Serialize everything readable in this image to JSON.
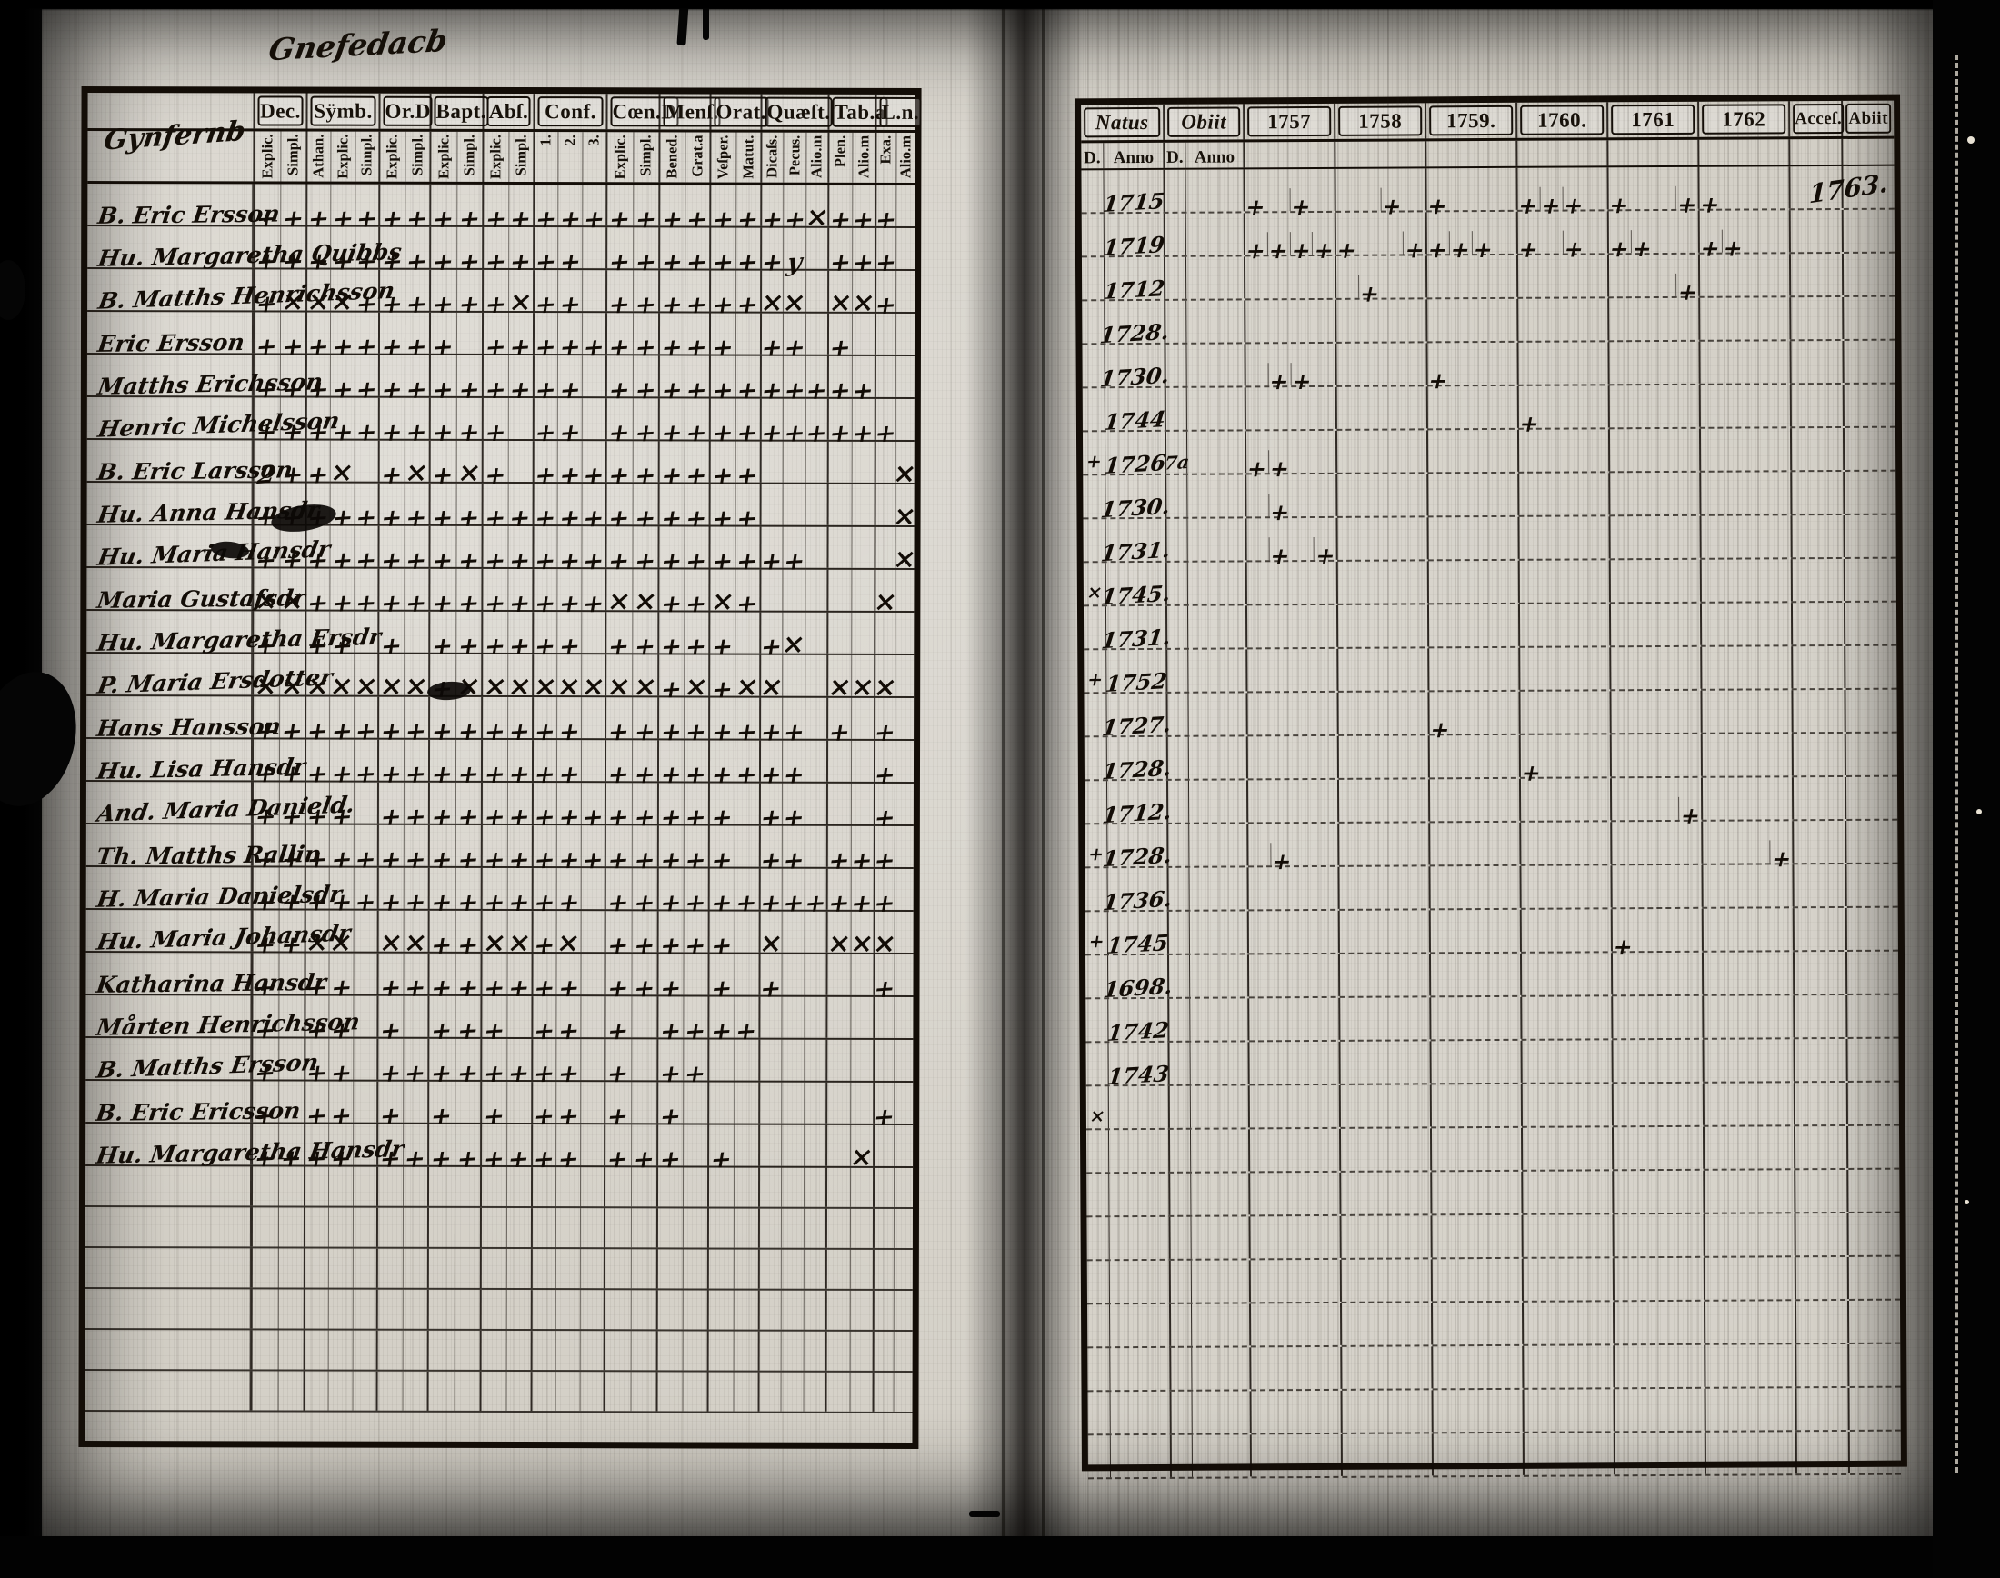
{
  "spread": {
    "handwritten_page_title": "Gnefedacb",
    "left_page": {
      "handwritten_name_header": "Gynfernb",
      "columns": [
        {
          "label": "Dec.",
          "subs": [
            "Explic.",
            "Simpl."
          ]
        },
        {
          "label": "Sÿmb.",
          "subs": [
            "Athan.",
            "Explic.",
            "Simpl."
          ]
        },
        {
          "label": "Or.D",
          "subs": [
            "Explic.",
            "Simpl."
          ]
        },
        {
          "label": "Bapt.",
          "subs": [
            "Explic.",
            "Simpl."
          ]
        },
        {
          "label": "Abſ.",
          "subs": [
            "Explic.",
            "Simpl."
          ]
        },
        {
          "label": "Conf.",
          "subs": [
            "1.",
            "2.",
            "3."
          ]
        },
        {
          "label": "Cœn.D",
          "subs": [
            "Explic.",
            "Simpl."
          ]
        },
        {
          "label": "Menſ.",
          "subs": [
            "Bened.",
            "Grat.a"
          ]
        },
        {
          "label": "Orat.",
          "subs": [
            "Veſper.",
            "Matut."
          ]
        },
        {
          "label": "Quæſt.",
          "subs": [
            "Dicaſs.",
            "Pecus.",
            "Alio.m"
          ]
        },
        {
          "label": "Tab.a",
          "subs": [
            "Plen.",
            "Alio.m"
          ]
        },
        {
          "label": "L.n.",
          "subs": [
            "Exa.",
            "Alio.m"
          ]
        }
      ],
      "rows": [
        {
          "name": "B. Eric Ersson",
          "marks": [
            "++",
            "+++",
            "++",
            "++",
            "++",
            "+++",
            "++",
            "++",
            "++",
            "++x",
            "++",
            "+ "
          ]
        },
        {
          "name": "Hu. Margaretha Quibbs",
          "marks": [
            "++",
            "+++",
            "++",
            "++",
            "++",
            "++ ",
            "++",
            "++",
            "++",
            "+y ",
            "++",
            "+ "
          ]
        },
        {
          "name": "B. Matths Henrichsson",
          "marks": [
            "+x",
            "xx+",
            "++",
            "++",
            "+x",
            "++ ",
            "++",
            "++",
            "++",
            "xx ",
            "xx",
            "+ "
          ]
        },
        {
          "name": "Eric Ersson",
          "marks": [
            "++",
            "+++",
            "++",
            "+ ",
            "++",
            "+++",
            "++",
            "++",
            "+ ",
            "++ ",
            "+ ",
            "  "
          ]
        },
        {
          "name": "Matths Erichsson",
          "marks": [
            "++",
            "+++",
            "++",
            "++",
            "++",
            "++ ",
            "++",
            "++",
            "++",
            "+++",
            "++",
            "  "
          ]
        },
        {
          "name": "Henric Michelsson",
          "marks": [
            "++",
            "+++",
            "++",
            "++",
            "+ ",
            "++ ",
            "++",
            "++",
            "++",
            "+++",
            "++",
            "+ "
          ]
        },
        {
          "name": "B. Eric Larsson",
          "marks": [
            "2+",
            "+x ",
            "+x",
            "+x",
            "+ ",
            "+++",
            "++",
            "++",
            "++",
            "   ",
            "  ",
            " x"
          ]
        },
        {
          "name": "Hu. Anna Hansdr",
          "marks": [
            "++",
            "+++",
            "++",
            "++",
            "++",
            "+++",
            "++",
            "++",
            "++",
            "   ",
            "  ",
            " x"
          ]
        },
        {
          "name": "Hu. Maria Hansdr",
          "marks": [
            "++",
            "+++",
            "++",
            "++",
            "++",
            "+++",
            "++",
            "++",
            "++",
            "++ ",
            "  ",
            " x"
          ]
        },
        {
          "name": "Maria Gustafsdr",
          "marks": [
            "xx",
            "+++",
            "++",
            "++",
            "++",
            "+++",
            "xx",
            "++",
            "x+",
            "   ",
            "  ",
            "x "
          ]
        },
        {
          "name": "Hu. Margaretha Ersdr",
          "marks": [
            "+ ",
            "++ ",
            "+ ",
            "++",
            "++",
            "++ ",
            "++",
            "++",
            "+ ",
            "+x ",
            "  ",
            "  "
          ]
        },
        {
          "name": "P. Maria Ersdotter",
          "marks": [
            "xx",
            "xxx",
            "xx",
            "+x",
            "xx",
            "xxx",
            "xx",
            "+x",
            "+x",
            "x  ",
            "xx",
            "x "
          ]
        },
        {
          "name": "Hans Hansson",
          "marks": [
            "++",
            "+++",
            "++",
            "++",
            "++",
            "++ ",
            "++",
            "++",
            "++",
            "++ ",
            "+ ",
            "+ "
          ]
        },
        {
          "name": "Hu. Lisa Hansdr",
          "marks": [
            "++",
            "+++",
            "++",
            "++",
            "++",
            "++ ",
            "++",
            "++",
            "++",
            "++ ",
            "  ",
            "+ "
          ]
        },
        {
          "name": "And. Maria Danield.",
          "marks": [
            "++",
            "++ ",
            "++",
            "++",
            "++",
            "+++",
            "++",
            "++",
            "+ ",
            "++ ",
            "  ",
            "+ "
          ]
        },
        {
          "name": "Th. Matths Rallin",
          "marks": [
            "++",
            "+++",
            "++",
            "++",
            "++",
            "+++",
            "++",
            "++",
            "+ ",
            "++ ",
            "++",
            "+ "
          ]
        },
        {
          "name": "H. Maria Danielsdr",
          "marks": [
            "++",
            "+++",
            "++",
            "++",
            "++",
            "++ ",
            "++",
            "++",
            "++",
            "+++",
            "++",
            "+ "
          ]
        },
        {
          "name": "Hu. Maria Johansdr",
          "marks": [
            "++",
            "xx ",
            "xx",
            "++",
            "xx",
            "+x ",
            "++",
            "++",
            "+ ",
            "x  ",
            "xx",
            "x "
          ]
        },
        {
          "name": "Katharina Hansdr",
          "marks": [
            "+ ",
            "++ ",
            "++",
            "++",
            "++",
            "++ ",
            "++",
            "+ ",
            "+ ",
            "+  ",
            "  ",
            "+ "
          ]
        },
        {
          "name": "Mårten Henrichsson",
          "marks": [
            "+ ",
            "++ ",
            "+ ",
            "++",
            "+ ",
            "++ ",
            "+ ",
            "++",
            "++",
            "   ",
            "  ",
            "  "
          ]
        },
        {
          "name": "B. Matths Ersson",
          "marks": [
            "+ ",
            "++ ",
            "++",
            "++",
            "++",
            "++ ",
            "+ ",
            "++",
            "  ",
            "   ",
            "  ",
            "  "
          ]
        },
        {
          "name": "B. Eric Ericsson",
          "marks": [
            "+ ",
            "++ ",
            "+ ",
            "+ ",
            "+ ",
            "++ ",
            "+ ",
            "+ ",
            "  ",
            "   ",
            "  ",
            "+ "
          ]
        },
        {
          "name": "Hu. Margaretha Hansdr",
          "marks": [
            "++",
            "++ ",
            "++",
            "++",
            "++",
            "++ ",
            "++",
            "+ ",
            "+ ",
            "   ",
            " x",
            "  "
          ]
        }
      ],
      "empty_row_count": 6
    },
    "right_page": {
      "natus_label": "Natus",
      "obiit_label": "Obiit",
      "day_label": "D.",
      "anno_label": "Anno",
      "years": [
        "1757",
        "1758",
        "1759.",
        "1760.",
        "1761",
        "1762"
      ],
      "accessit_label": "Acceſ.",
      "abiit_label": "Abiit",
      "handwritten_year": "1763.",
      "rows": [
        {
          "pre": "",
          "natus": "1715",
          "obiit": "",
          "year_marks": [
            "+.+.",
            "..+.",
            "+...",
            "+++.",
            "+..+",
            "+..."
          ]
        },
        {
          "pre": "",
          "natus": "1719",
          "obiit": "",
          "year_marks": [
            "++++",
            "+..+",
            "+++.",
            "+.+.",
            "++..",
            "++.."
          ]
        },
        {
          "pre": "",
          "natus": "1712",
          "obiit": "",
          "year_marks": [
            "....",
            ".+..",
            "....",
            "....",
            "...+",
            "...."
          ]
        },
        {
          "pre": "",
          "natus": "1728.",
          "obiit": "",
          "year_marks": [
            "....",
            "....",
            "....",
            "....",
            "....",
            "...."
          ]
        },
        {
          "pre": "",
          "natus": "1730.",
          "obiit": "",
          "year_marks": [
            ".++.",
            "....",
            "+...",
            "....",
            "....",
            "...."
          ]
        },
        {
          "pre": "",
          "natus": "1744",
          "obiit": "",
          "year_marks": [
            "....",
            "....",
            "....",
            "+...",
            "....",
            "...."
          ]
        },
        {
          "pre": "+",
          "natus": "1726",
          "obiit": "7a",
          "year_marks": [
            "++..",
            "....",
            "....",
            "....",
            "....",
            "...."
          ]
        },
        {
          "pre": "",
          "natus": "1730.",
          "obiit": "",
          "year_marks": [
            ".+..",
            "....",
            "....",
            "....",
            "....",
            "...."
          ]
        },
        {
          "pre": "",
          "natus": "1731.",
          "obiit": "",
          "year_marks": [
            ".+.+",
            "....",
            "....",
            "....",
            "....",
            "...."
          ]
        },
        {
          "pre": "x",
          "natus": "1745.",
          "obiit": "",
          "year_marks": [
            "....",
            "....",
            "....",
            "....",
            "....",
            "...."
          ]
        },
        {
          "pre": "",
          "natus": "1731.",
          "obiit": "",
          "year_marks": [
            "....",
            "....",
            "....",
            "....",
            "....",
            "...."
          ]
        },
        {
          "pre": "+",
          "natus": "1752",
          "obiit": "",
          "year_marks": [
            "....",
            "....",
            "....",
            "....",
            "....",
            "...."
          ]
        },
        {
          "pre": "",
          "natus": "1727.",
          "obiit": "",
          "year_marks": [
            "....",
            "....",
            "+...",
            "....",
            "....",
            "...."
          ]
        },
        {
          "pre": "",
          "natus": "1728.",
          "obiit": "",
          "year_marks": [
            "....",
            "....",
            "....",
            "+...",
            "....",
            "...."
          ]
        },
        {
          "pre": "",
          "natus": "1712.",
          "obiit": "",
          "year_marks": [
            "....",
            "....",
            "....",
            "....",
            "...+",
            "...."
          ]
        },
        {
          "pre": "+",
          "natus": "1728.",
          "obiit": "",
          "year_marks": [
            ".+..",
            "....",
            "....",
            "....",
            "....",
            "...+"
          ]
        },
        {
          "pre": "",
          "natus": "1736.",
          "obiit": "",
          "year_marks": [
            "....",
            "....",
            "....",
            "....",
            "....",
            "...."
          ]
        },
        {
          "pre": "+",
          "natus": "1745",
          "obiit": "",
          "year_marks": [
            "....",
            "....",
            "....",
            "....",
            "+...",
            "...."
          ]
        },
        {
          "pre": "",
          "natus": "1698.",
          "obiit": "",
          "year_marks": [
            "....",
            "....",
            "....",
            "....",
            "....",
            "...."
          ]
        },
        {
          "pre": "",
          "natus": "1742",
          "obiit": "",
          "year_marks": [
            "....",
            "....",
            "....",
            "....",
            "....",
            "...."
          ]
        },
        {
          "pre": "",
          "natus": "1743",
          "obiit": "",
          "year_marks": [
            "....",
            "....",
            "....",
            "....",
            "....",
            "...."
          ]
        },
        {
          "pre": "x",
          "natus": "",
          "obiit": "",
          "year_marks": [
            "....",
            "....",
            "....",
            "....",
            "....",
            "...."
          ]
        }
      ],
      "empty_row_count": 8
    }
  }
}
